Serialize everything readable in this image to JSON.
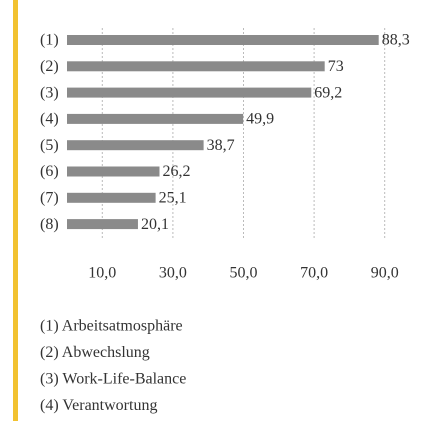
{
  "chart_data": {
    "type": "bar",
    "orientation": "horizontal",
    "categories": [
      "(1)",
      "(2)",
      "(3)",
      "(4)",
      "(5)",
      "(6)",
      "(7)",
      "(8)"
    ],
    "values": [
      88.3,
      73,
      69.2,
      49.9,
      38.7,
      26.2,
      25.1,
      20.1
    ],
    "value_labels": [
      "88,3",
      "73",
      "69,2",
      "49,9",
      "38,7",
      "26,2",
      "25,1",
      "20,1"
    ],
    "color": "#8a8a8a",
    "xlim": [
      0,
      100
    ],
    "xticks": [
      {
        "value": 10,
        "label": "10,0"
      },
      {
        "value": 30,
        "label": "30,0"
      },
      {
        "value": 50,
        "label": "50,0"
      },
      {
        "value": 70,
        "label": "70,0"
      },
      {
        "value": 90,
        "label": "90,0"
      }
    ],
    "grid": true,
    "legend": [
      "(1) Arbeitsatmosphäre",
      "(2) Abwechslung",
      "(3) Work-Life-Balance",
      "(4) Verantwortung"
    ]
  }
}
